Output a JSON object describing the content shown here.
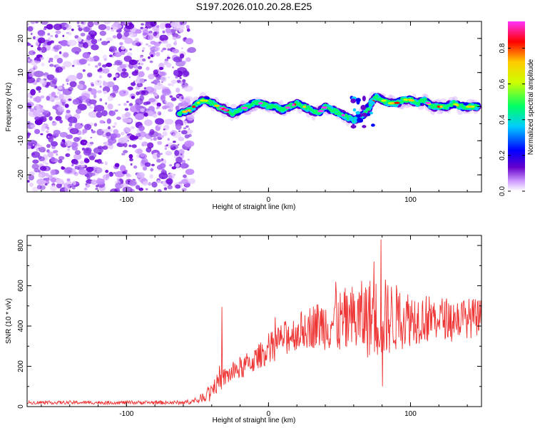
{
  "chart_data": [
    {
      "type": "heatmap",
      "title": "S197.2026.010.20.28.E25",
      "xlabel": "Height of straight line (km)",
      "ylabel": "Frequency (Hz)",
      "xlim": [
        -170,
        150
      ],
      "ylim": [
        -25,
        25
      ],
      "x_ticks": [
        -100,
        0,
        100
      ],
      "y_ticks": [
        -20,
        -10,
        0,
        10,
        20
      ],
      "noise_region_x": [
        -170,
        -57
      ],
      "ridge": {
        "x": [
          -63,
          -55,
          -50,
          -45,
          -40,
          -35,
          -30,
          -25,
          -20,
          -15,
          -10,
          -5,
          0,
          5,
          10,
          15,
          20,
          25,
          30,
          35,
          40,
          45,
          50,
          55,
          60,
          65,
          70,
          75,
          80,
          85,
          90,
          95,
          100,
          105,
          110,
          115,
          120,
          125,
          130,
          135,
          140,
          145,
          148
        ],
        "y": [
          -2,
          -1,
          1,
          2,
          1,
          0,
          -1,
          -2,
          -1,
          0,
          1,
          1,
          0,
          0,
          -1,
          0,
          1,
          0,
          -1,
          -2,
          0,
          -1,
          -2,
          -3,
          -4,
          -3,
          -1,
          3,
          2,
          1,
          1,
          2,
          2,
          1,
          2,
          0,
          0,
          0,
          1,
          0,
          0,
          0,
          0
        ]
      },
      "colorbar": {
        "label": "Normalized spectral amplitude",
        "ticks": [
          "0.0",
          "0.2",
          "0.4",
          "0.6",
          "0.8"
        ],
        "range": [
          0,
          0.95
        ],
        "colors": [
          "#ffffff",
          "#cc99ff",
          "#6600cc",
          "#0000ff",
          "#00ccff",
          "#00ff66",
          "#ccff00",
          "#ffcc00",
          "#ff0000",
          "#ff33ff"
        ]
      }
    },
    {
      "type": "line",
      "title": "",
      "xlabel": "Height of straight line (km)",
      "ylabel": "SNR (10 * v/v)",
      "xlim": [
        -170,
        150
      ],
      "ylim": [
        0,
        850
      ],
      "x_ticks": [
        -100,
        0,
        100
      ],
      "y_ticks": [
        0,
        200,
        400,
        600,
        800
      ],
      "color": "#ee3333",
      "envelope": {
        "x": [
          -170,
          -60,
          -50,
          -45,
          -40,
          -35,
          -30,
          -25,
          -20,
          -10,
          0,
          10,
          20,
          30,
          40,
          50,
          60,
          70,
          80,
          90,
          100,
          110,
          120,
          130,
          140,
          150
        ],
        "base": [
          20,
          20,
          30,
          55,
          90,
          120,
          150,
          170,
          190,
          230,
          290,
          340,
          370,
          400,
          410,
          420,
          430,
          440,
          440,
          440,
          440,
          440,
          440,
          440,
          440,
          440
        ],
        "amp": [
          8,
          10,
          15,
          30,
          40,
          50,
          50,
          50,
          60,
          60,
          70,
          80,
          90,
          110,
          130,
          160,
          180,
          200,
          210,
          170,
          140,
          120,
          110,
          100,
          100,
          100
        ]
      },
      "spikes": [
        {
          "x": -33,
          "y": 495
        },
        {
          "x": 74,
          "y": 720
        },
        {
          "x": 79,
          "y": 830
        },
        {
          "x": 80,
          "y": 100
        },
        {
          "x": 47,
          "y": 620
        }
      ]
    }
  ]
}
